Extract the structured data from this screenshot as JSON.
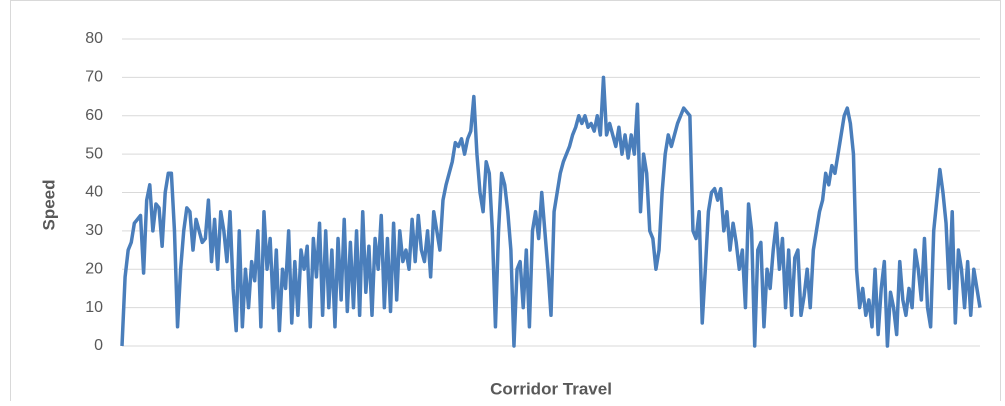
{
  "chart_data": {
    "type": "line",
    "y_label": "Speed",
    "x_label": "Corridor Travel",
    "color": "#4a7ebb",
    "grid": true,
    "ylim": [
      0,
      80
    ],
    "yticks": [
      0,
      10,
      20,
      30,
      40,
      50,
      60,
      70,
      80
    ],
    "values": [
      0,
      18,
      25,
      27,
      32,
      33,
      34,
      19,
      38,
      42,
      30,
      37,
      36,
      26,
      40,
      45,
      45,
      30,
      5,
      20,
      30,
      36,
      35,
      25,
      33,
      30,
      27,
      28,
      38,
      22,
      33,
      20,
      35,
      30,
      22,
      35,
      15,
      4,
      30,
      5,
      20,
      10,
      22,
      17,
      30,
      5,
      35,
      20,
      28,
      10,
      25,
      4,
      20,
      15,
      30,
      6,
      22,
      8,
      25,
      20,
      26,
      5,
      28,
      18,
      32,
      8,
      30,
      10,
      25,
      5,
      28,
      12,
      33,
      9,
      27,
      10,
      30,
      8,
      35,
      14,
      26,
      8,
      28,
      20,
      34,
      10,
      28,
      9,
      32,
      12,
      30,
      22,
      25,
      20,
      33,
      22,
      34,
      25,
      22,
      30,
      18,
      35,
      30,
      25,
      38,
      42,
      45,
      48,
      53,
      52,
      54,
      50,
      54,
      56,
      65,
      50,
      40,
      35,
      48,
      45,
      30,
      5,
      30,
      45,
      42,
      35,
      25,
      0,
      20,
      22,
      10,
      25,
      5,
      30,
      35,
      28,
      40,
      30,
      20,
      8,
      35,
      40,
      45,
      48,
      50,
      52,
      55,
      57,
      60,
      58,
      60,
      57,
      58,
      56,
      60,
      55,
      70,
      55,
      58,
      55,
      52,
      57,
      50,
      55,
      49,
      55,
      50,
      63,
      35,
      50,
      45,
      30,
      28,
      20,
      25,
      40,
      50,
      55,
      52,
      55,
      58,
      60,
      62,
      61,
      60,
      30,
      28,
      35,
      6,
      20,
      35,
      40,
      41,
      38,
      41,
      30,
      35,
      25,
      32,
      27,
      20,
      25,
      10,
      37,
      30,
      0,
      25,
      27,
      5,
      20,
      15,
      25,
      32,
      20,
      28,
      10,
      25,
      8,
      23,
      25,
      8,
      13,
      20,
      10,
      25,
      30,
      35,
      38,
      45,
      42,
      47,
      45,
      50,
      55,
      60,
      62,
      58,
      50,
      20,
      10,
      15,
      8,
      12,
      5,
      20,
      3,
      15,
      22,
      0,
      14,
      10,
      3,
      22,
      12,
      8,
      15,
      10,
      25,
      20,
      12,
      28,
      10,
      5,
      30,
      38,
      46,
      40,
      32,
      15,
      35,
      6,
      25,
      20,
      10,
      22,
      8,
      20,
      15,
      10
    ]
  }
}
